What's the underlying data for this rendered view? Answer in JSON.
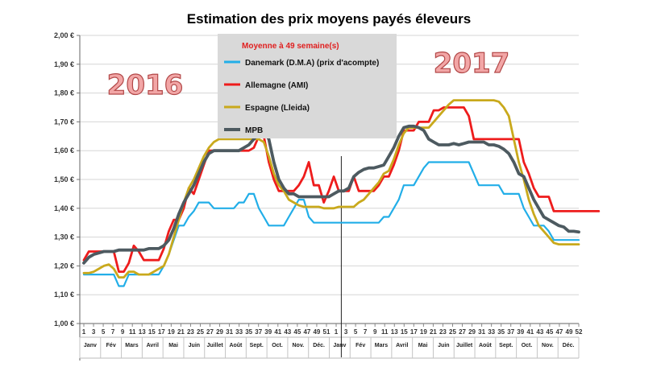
{
  "chart_data": {
    "type": "line",
    "title": "Estimation des prix moyens payés éleveurs",
    "legend_header": "Moyenne à  49 semaine(s)",
    "legend_position": "top-center",
    "y_labels": [
      "1,00 €",
      "1,10 €",
      "1,20 €",
      "1,30 €",
      "1,40 €",
      "1,50 €",
      "1,60 €",
      "1,70 €",
      "1,80 €",
      "1,90 €",
      "2,00 €"
    ],
    "ylim": [
      1.0,
      2.0
    ],
    "x_tick_labels": [
      "1",
      "3",
      "5",
      "7",
      "9",
      "11",
      "13",
      "15",
      "17",
      "19",
      "21",
      "23",
      "25",
      "27",
      "29",
      "31",
      "33",
      "35",
      "37",
      "39",
      "41",
      "43",
      "45",
      "47",
      "49",
      "51",
      "1",
      "3",
      "5",
      "7",
      "9",
      "11",
      "13",
      "15",
      "17",
      "19",
      "21",
      "23",
      "25",
      "27",
      "29",
      "31",
      "33",
      "35",
      "37",
      "39",
      "41",
      "43",
      "45",
      "47",
      "49",
      "52"
    ],
    "months": [
      "Janv",
      "Fév",
      "Mars",
      "Avril",
      "Mai",
      "Juin",
      "Juillet",
      "Août",
      "Sept.",
      "Oct.",
      "Nov.",
      "Déc.",
      "Janv",
      "Fév",
      "Mars",
      "Avril",
      "Mai",
      "Juin",
      "Juillet",
      "Août",
      "Sept.",
      "Oct.",
      "Nov.",
      "Déc."
    ],
    "year_labels": [
      "2016",
      "2017"
    ],
    "series": [
      {
        "name": "Danemark (D.M.A) (prix d'acompte)",
        "color": "#22aee8",
        "values": [
          1.17,
          1.17,
          1.17,
          1.17,
          1.17,
          1.17,
          1.17,
          1.13,
          1.13,
          1.17,
          1.17,
          1.17,
          1.17,
          1.17,
          1.17,
          1.17,
          1.2,
          1.24,
          1.29,
          1.34,
          1.34,
          1.37,
          1.39,
          1.42,
          1.42,
          1.42,
          1.4,
          1.4,
          1.4,
          1.4,
          1.4,
          1.42,
          1.42,
          1.45,
          1.45,
          1.4,
          1.37,
          1.34,
          1.34,
          1.34,
          1.34,
          1.37,
          1.4,
          1.43,
          1.43,
          1.37,
          1.35,
          1.35,
          1.35,
          1.35,
          1.35,
          1.35,
          1.35,
          1.35,
          1.35,
          1.35,
          1.35,
          1.35,
          1.35,
          1.35,
          1.37,
          1.37,
          1.4,
          1.43,
          1.48,
          1.48,
          1.48,
          1.51,
          1.54,
          1.56,
          1.56,
          1.56,
          1.56,
          1.56,
          1.56,
          1.56,
          1.56,
          1.56,
          1.52,
          1.48,
          1.48,
          1.48,
          1.48,
          1.48,
          1.45,
          1.45,
          1.45,
          1.45,
          1.4,
          1.37,
          1.34,
          1.34,
          1.34,
          1.32,
          1.29,
          1.29,
          1.29,
          1.29,
          1.29,
          1.29
        ]
      },
      {
        "name": "Allemagne (AMI)",
        "color": "#ee1c1c",
        "values": [
          1.22,
          1.25,
          1.25,
          1.25,
          1.25,
          1.25,
          1.25,
          1.18,
          1.18,
          1.21,
          1.27,
          1.25,
          1.22,
          1.22,
          1.22,
          1.22,
          1.26,
          1.32,
          1.36,
          1.36,
          1.4,
          1.47,
          1.45,
          1.5,
          1.55,
          1.6,
          1.6,
          1.6,
          1.6,
          1.6,
          1.6,
          1.6,
          1.6,
          1.6,
          1.61,
          1.65,
          1.65,
          1.56,
          1.5,
          1.46,
          1.46,
          1.46,
          1.46,
          1.48,
          1.51,
          1.56,
          1.48,
          1.48,
          1.42,
          1.46,
          1.51,
          1.46,
          1.46,
          1.46,
          1.51,
          1.46,
          1.46,
          1.46,
          1.46,
          1.48,
          1.51,
          1.51,
          1.55,
          1.6,
          1.67,
          1.67,
          1.67,
          1.7,
          1.7,
          1.7,
          1.74,
          1.74,
          1.75,
          1.75,
          1.75,
          1.75,
          1.75,
          1.72,
          1.64,
          1.64,
          1.64,
          1.64,
          1.64,
          1.64,
          1.64,
          1.64,
          1.64,
          1.64,
          1.56,
          1.52,
          1.47,
          1.44,
          1.44,
          1.44,
          1.39,
          1.39,
          1.39,
          1.39,
          1.39,
          1.39,
          1.39,
          1.39,
          1.39,
          1.39
        ]
      },
      {
        "name": "Espagne (Lleida)",
        "color": "#c9a91c",
        "values": [
          1.175,
          1.175,
          1.18,
          1.19,
          1.2,
          1.205,
          1.19,
          1.16,
          1.16,
          1.18,
          1.18,
          1.17,
          1.17,
          1.17,
          1.18,
          1.19,
          1.2,
          1.24,
          1.3,
          1.36,
          1.42,
          1.47,
          1.5,
          1.54,
          1.58,
          1.61,
          1.63,
          1.64,
          1.64,
          1.64,
          1.64,
          1.64,
          1.64,
          1.64,
          1.64,
          1.64,
          1.63,
          1.58,
          1.52,
          1.48,
          1.46,
          1.43,
          1.42,
          1.41,
          1.405,
          1.405,
          1.405,
          1.405,
          1.4,
          1.4,
          1.4,
          1.405,
          1.405,
          1.405,
          1.405,
          1.42,
          1.43,
          1.45,
          1.47,
          1.49,
          1.52,
          1.53,
          1.57,
          1.62,
          1.66,
          1.68,
          1.68,
          1.68,
          1.68,
          1.68,
          1.7,
          1.72,
          1.74,
          1.76,
          1.775,
          1.775,
          1.775,
          1.775,
          1.775,
          1.775,
          1.775,
          1.775,
          1.775,
          1.77,
          1.75,
          1.72,
          1.64,
          1.56,
          1.5,
          1.43,
          1.38,
          1.34,
          1.32,
          1.3,
          1.28,
          1.275,
          1.275,
          1.275,
          1.275,
          1.275
        ]
      },
      {
        "name": "MPB",
        "color": "#4d5a60",
        "values": [
          1.21,
          1.23,
          1.24,
          1.245,
          1.25,
          1.25,
          1.25,
          1.255,
          1.255,
          1.255,
          1.255,
          1.255,
          1.255,
          1.26,
          1.26,
          1.26,
          1.27,
          1.29,
          1.33,
          1.38,
          1.42,
          1.45,
          1.48,
          1.52,
          1.56,
          1.59,
          1.6,
          1.6,
          1.6,
          1.6,
          1.6,
          1.6,
          1.61,
          1.62,
          1.64,
          1.66,
          1.67,
          1.64,
          1.56,
          1.5,
          1.47,
          1.45,
          1.45,
          1.44,
          1.44,
          1.44,
          1.44,
          1.44,
          1.44,
          1.44,
          1.45,
          1.46,
          1.46,
          1.47,
          1.51,
          1.525,
          1.535,
          1.54,
          1.54,
          1.545,
          1.55,
          1.58,
          1.61,
          1.65,
          1.68,
          1.685,
          1.685,
          1.68,
          1.67,
          1.64,
          1.63,
          1.62,
          1.62,
          1.62,
          1.625,
          1.62,
          1.625,
          1.63,
          1.63,
          1.63,
          1.63,
          1.62,
          1.62,
          1.615,
          1.605,
          1.59,
          1.56,
          1.52,
          1.51,
          1.47,
          1.43,
          1.4,
          1.37,
          1.36,
          1.35,
          1.34,
          1.335,
          1.32,
          1.32,
          1.318
        ]
      }
    ]
  }
}
